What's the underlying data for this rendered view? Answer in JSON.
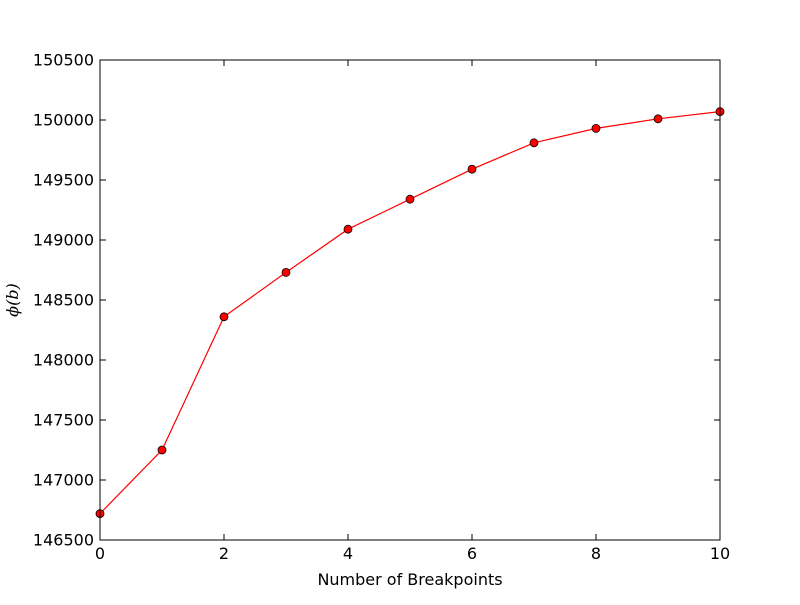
{
  "chart_data": {
    "type": "line",
    "title": "",
    "xlabel": "Number of Breakpoints",
    "ylabel": "ϕ(b)",
    "xlim": [
      0,
      10
    ],
    "ylim": [
      146500,
      150500
    ],
    "x_ticks": [
      0,
      2,
      4,
      6,
      8,
      10
    ],
    "y_ticks": [
      146500,
      147000,
      147500,
      148000,
      148500,
      149000,
      149500,
      150000,
      150500
    ],
    "grid": false,
    "legend": "none",
    "series": [
      {
        "x": [
          0,
          1,
          2,
          3,
          4,
          5,
          6,
          7,
          8,
          9,
          10
        ],
        "values": [
          146720,
          147250,
          148360,
          148730,
          149090,
          149340,
          149590,
          149810,
          149930,
          150010,
          150070
        ],
        "line_color": "#ff0000",
        "marker": "circle",
        "marker_color": "#ff0000",
        "marker_edge_color": "#000000"
      }
    ]
  }
}
